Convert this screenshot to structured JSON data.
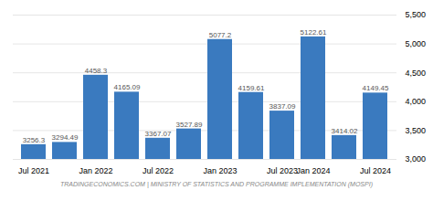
{
  "chart_data": {
    "type": "bar",
    "categories": [
      "Jul 2021",
      null,
      "Jan 2022",
      null,
      "Jul 2022",
      null,
      "Jan 2023",
      null,
      "Jul 2023",
      "Jan 2024",
      null,
      "Jul 2024"
    ],
    "values": [
      3256.3,
      3294.49,
      4458.3,
      4165.09,
      3367.07,
      3527.89,
      5077.2,
      4159.61,
      3837.09,
      5122.61,
      3414.02,
      4149.45
    ],
    "color": "#3a7abf",
    "ylim": [
      3000,
      5500
    ],
    "yticks": [
      3000,
      3500,
      4000,
      4500,
      5000,
      5500
    ],
    "grid": true,
    "data_labels": true,
    "caption": "TRADINGECONOMICS.COM | MINISTRY OF STATISTICS AND PROGRAMME IMPLEMENTATION (MOSPI)"
  }
}
